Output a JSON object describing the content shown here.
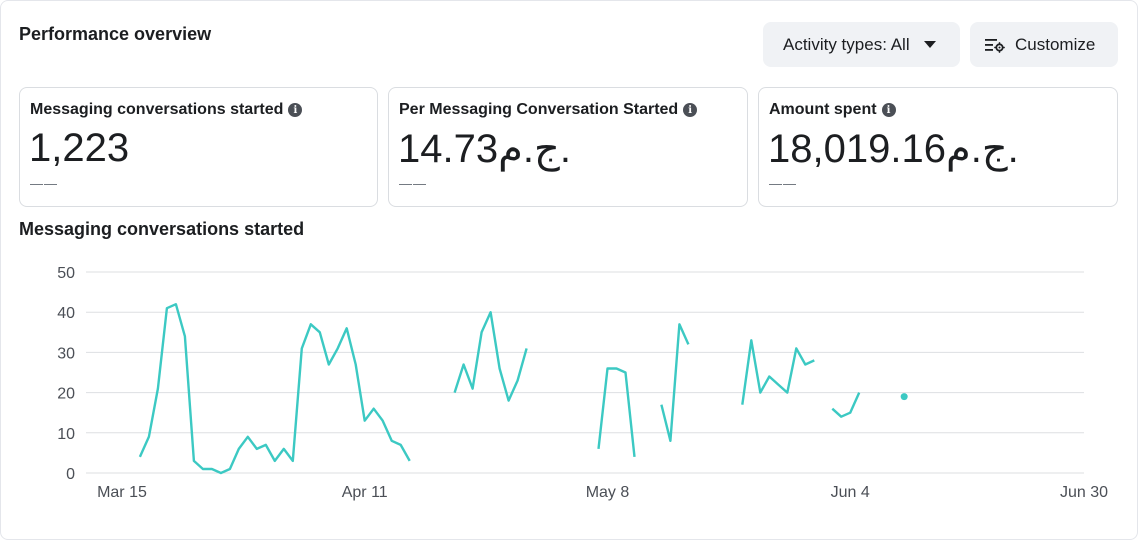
{
  "header": {
    "title": "Performance overview",
    "activity_button": "Activity types: All",
    "customize_button": "Customize"
  },
  "cards": [
    {
      "label": "Messaging conversations started",
      "value": "1,223",
      "sub": "——"
    },
    {
      "label": "Per Messaging Conversation Started",
      "value": "14.73ج.م.",
      "sub": "——"
    },
    {
      "label": "Amount spent",
      "value": "18,019.16ج.م.",
      "sub": "——"
    }
  ],
  "icons": {
    "info": "info-icon",
    "caret": "caret-down-icon",
    "customize": "customize-settings-icon"
  },
  "colors": {
    "line": "#3cc9c3",
    "grid": "#dddfe2",
    "button_bg": "#f0f2f5"
  },
  "chart_data": {
    "type": "line",
    "title": "Messaging conversations started",
    "ylim": [
      0,
      50
    ],
    "yticks": [
      0,
      10,
      20,
      30,
      40,
      50
    ],
    "xlim": [
      "2025-03-11",
      "2025-06-30"
    ],
    "xticks": [
      {
        "date": "2025-03-15",
        "label": "Mar 15"
      },
      {
        "date": "2025-04-11",
        "label": "Apr 11"
      },
      {
        "date": "2025-05-08",
        "label": "May 8"
      },
      {
        "date": "2025-06-04",
        "label": "Jun 4"
      },
      {
        "date": "2025-06-30",
        "label": "Jun 30"
      }
    ],
    "grid": true,
    "series": [
      {
        "segments": [
          {
            "start": "2025-03-17",
            "values": [
              4,
              9,
              21,
              41,
              42,
              34,
              3,
              1,
              1,
              0,
              1,
              6,
              9,
              6,
              7,
              3,
              6,
              3,
              31,
              37,
              35,
              27,
              31,
              36,
              27,
              13,
              16,
              13,
              8,
              7,
              3
            ]
          },
          {
            "start": "2025-04-21",
            "values": [
              20,
              27,
              21,
              35,
              40,
              26,
              18,
              23,
              31
            ]
          },
          {
            "start": "2025-05-07",
            "values": [
              6,
              26,
              26,
              25,
              4
            ]
          },
          {
            "start": "2025-05-14",
            "values": [
              17,
              8,
              37,
              32
            ]
          },
          {
            "start": "2025-05-23",
            "values": [
              17,
              33,
              20,
              24,
              22,
              20,
              31,
              27,
              28
            ]
          },
          {
            "start": "2025-06-02",
            "values": [
              16,
              14,
              15,
              20
            ]
          },
          {
            "start": "2025-06-10",
            "values": [
              19
            ]
          }
        ]
      }
    ]
  }
}
